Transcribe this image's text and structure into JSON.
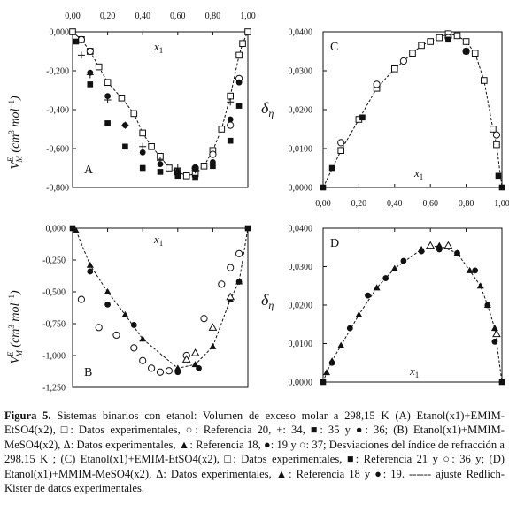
{
  "chart_data": [
    {
      "panel": "A",
      "type": "scatter",
      "ylabel": "V_M^E (cm^3 mol^-1)",
      "xlabel": "x1",
      "x_ticks": [
        "0,00",
        "0,20",
        "0,40",
        "0,60",
        "0,80",
        "1,00"
      ],
      "y_ticks": [
        "0,000",
        "-0,200",
        "-0,400",
        "-0,600",
        "-0,800"
      ],
      "xlim": [
        0,
        1
      ],
      "ylim": [
        -0.8,
        0
      ],
      "series": [
        {
          "marker": "open-square",
          "x": [
            0.0,
            0.05,
            0.1,
            0.15,
            0.2,
            0.28,
            0.35,
            0.4,
            0.45,
            0.5,
            0.55,
            0.6,
            0.65,
            0.7,
            0.75,
            0.8,
            0.85,
            0.9,
            0.95,
            0.97,
            1.0
          ],
          "y": [
            0.0,
            -0.04,
            -0.1,
            -0.18,
            -0.26,
            -0.34,
            -0.42,
            -0.52,
            -0.59,
            -0.64,
            -0.7,
            -0.72,
            -0.74,
            -0.73,
            -0.69,
            -0.61,
            -0.5,
            -0.33,
            -0.12,
            -0.06,
            0.0
          ]
        },
        {
          "marker": "open-circle",
          "x": [
            0.05,
            0.1,
            0.7,
            0.8,
            0.9,
            0.95
          ],
          "y": [
            -0.04,
            -0.1,
            -0.7,
            -0.63,
            -0.48,
            -0.24
          ]
        },
        {
          "marker": "plus",
          "x": [
            0.05,
            0.1,
            0.2,
            0.3,
            0.4,
            0.5,
            0.6,
            0.7,
            0.8,
            0.9
          ],
          "y": [
            -0.12,
            -0.22,
            -0.35,
            -0.48,
            -0.59,
            -0.66,
            -0.7,
            -0.71,
            -0.68,
            -0.36
          ]
        },
        {
          "marker": "filled-square",
          "x": [
            0.02,
            0.1,
            0.2,
            0.3,
            0.4,
            0.5,
            0.6,
            0.7,
            0.8,
            0.9,
            0.95
          ],
          "y": [
            -0.05,
            -0.27,
            -0.47,
            -0.59,
            -0.7,
            -0.72,
            -0.74,
            -0.75,
            -0.69,
            -0.56,
            -0.38
          ]
        },
        {
          "marker": "filled-circle",
          "x": [
            0.1,
            0.2,
            0.3,
            0.4,
            0.5,
            0.6,
            0.7,
            0.8,
            0.9,
            0.95
          ],
          "y": [
            -0.21,
            -0.33,
            -0.48,
            -0.62,
            -0.68,
            -0.72,
            -0.7,
            -0.67,
            -0.45,
            -0.26
          ]
        }
      ],
      "fit": "redlich-kister"
    },
    {
      "panel": "C",
      "type": "scatter",
      "ylabel": "δη",
      "xlabel": "x1",
      "x_ticks": [
        "0,00",
        "0,20",
        "0,40",
        "0,60",
        "0,80",
        "1,00"
      ],
      "y_ticks": [
        "0,0400",
        "0,0300",
        "0,0200",
        "0,0100",
        "0,0000"
      ],
      "xlim": [
        0,
        1
      ],
      "ylim": [
        0,
        0.04
      ],
      "series": [
        {
          "marker": "open-square",
          "x": [
            0.1,
            0.2,
            0.3,
            0.4,
            0.5,
            0.55,
            0.6,
            0.65,
            0.7,
            0.75,
            0.8,
            0.85,
            0.9,
            0.95,
            0.97
          ],
          "y": [
            0.0095,
            0.0175,
            0.0255,
            0.0305,
            0.0345,
            0.0365,
            0.0375,
            0.0385,
            0.0395,
            0.039,
            0.0375,
            0.0345,
            0.0275,
            0.015,
            0.011
          ]
        },
        {
          "marker": "open-circle",
          "x": [
            0.1,
            0.3,
            0.45,
            0.7,
            0.8,
            0.97
          ],
          "y": [
            0.0115,
            0.0265,
            0.0325,
            0.0385,
            0.035,
            0.0135
          ]
        },
        {
          "marker": "filled-square",
          "x": [
            0.0,
            0.05,
            0.22,
            0.7,
            0.8,
            0.98,
            1.0
          ],
          "y": [
            0.0,
            0.005,
            0.018,
            0.038,
            0.035,
            0.003,
            0.0
          ]
        }
      ],
      "fit": "redlich-kister"
    },
    {
      "panel": "B",
      "type": "scatter",
      "ylabel": "V_M^E (cm^3 mol^-1)",
      "xlabel": "x1",
      "y_ticks": [
        "0,000",
        "-0,250",
        "-0,500",
        "-0,750",
        "-1,000",
        "-1,250"
      ],
      "xlim": [
        0,
        1
      ],
      "ylim": [
        -1.25,
        0
      ],
      "series": [
        {
          "marker": "filled-triangle",
          "x": [
            0.02,
            0.1,
            0.2,
            0.3,
            0.4,
            0.6,
            0.7,
            0.8,
            0.9,
            0.95
          ],
          "y": [
            -0.02,
            -0.29,
            -0.5,
            -0.68,
            -0.87,
            -1.1,
            -1.07,
            -0.93,
            -0.56,
            -0.42
          ]
        },
        {
          "marker": "filled-circle",
          "x": [
            0.1,
            0.2,
            0.35,
            0.6,
            0.72,
            0.95
          ],
          "y": [
            -0.34,
            -0.6,
            -0.76,
            -1.13,
            -1.1,
            -0.42
          ]
        },
        {
          "marker": "open-circle",
          "x": [
            0.05,
            0.15,
            0.25,
            0.35,
            0.4,
            0.45,
            0.5,
            0.55,
            0.65,
            0.75,
            0.85,
            0.9,
            0.95
          ],
          "y": [
            -0.56,
            -0.78,
            -0.84,
            -0.94,
            -1.04,
            -1.1,
            -1.13,
            -1.12,
            -1.0,
            -0.71,
            -0.44,
            -0.31,
            -0.2
          ]
        },
        {
          "marker": "open-triangle",
          "x": [
            0.65,
            0.7,
            0.8,
            0.9
          ],
          "y": [
            -1.03,
            -0.98,
            -0.78,
            -0.54
          ]
        },
        {
          "marker": "filled-square",
          "x": [
            0.0,
            1.0
          ],
          "y": [
            0.0,
            0.0
          ]
        }
      ],
      "fit": "redlich-kister"
    },
    {
      "panel": "D",
      "type": "scatter",
      "ylabel": "δη",
      "xlabel": "x1",
      "y_ticks": [
        "0,0400",
        "0,0300",
        "0,0200",
        "0,0100",
        "0,0000"
      ],
      "xlim": [
        0,
        1
      ],
      "ylim": [
        0,
        0.04
      ],
      "series": [
        {
          "marker": "filled-triangle",
          "x": [
            0.02,
            0.05,
            0.1,
            0.2,
            0.3,
            0.4,
            0.55,
            0.65,
            0.75,
            0.82,
            0.88,
            0.92,
            0.96
          ],
          "y": [
            0.0025,
            0.0055,
            0.0095,
            0.0175,
            0.0245,
            0.0295,
            0.0345,
            0.0355,
            0.0335,
            0.029,
            0.025,
            0.02,
            0.014
          ]
        },
        {
          "marker": "filled-circle",
          "x": [
            0.05,
            0.15,
            0.25,
            0.35,
            0.45,
            0.55,
            0.65,
            0.75,
            0.85,
            0.92,
            0.96
          ],
          "y": [
            0.005,
            0.014,
            0.0225,
            0.027,
            0.0315,
            0.034,
            0.0345,
            0.0335,
            0.029,
            0.02,
            0.0105
          ]
        },
        {
          "marker": "open-triangle",
          "x": [
            0.6,
            0.7,
            0.97
          ],
          "y": [
            0.0355,
            0.0355,
            0.0125
          ]
        },
        {
          "marker": "filled-square",
          "x": [
            0.0,
            1.0
          ],
          "y": [
            0.0,
            0.0
          ]
        }
      ],
      "fit": "redlich-kister"
    }
  ],
  "caption": {
    "label": "Figura 5.",
    "text": "Sistemas binarios con etanol: Volumen de exceso molar a 298,15 K (A) Etanol(x1)+EMIM-EtSO4(x2), □: Datos experimentales, ○: Referencia 20, +: 34, ■: 35 y ●: 36; (B) Etanol(x1)+MMIM-MeSO4(x2), Δ: Datos experimentales, ▲: Referencia 18, ●: 19 y ○: 37; Desviaciones del índice de refracción a 298.15 K ; (C) Etanol(x1)+EMIM-EtSO4(x2), □: Datos experimentales, ■: Referencia 21 y ○: 36 y; (D) Etanol(x1)+MMIM-MeSO4(x2), Δ: Datos experimentales, ▲: Referencia 18 y ●: 19. ------ ajuste Redlich-Kister de datos experimentales."
  }
}
